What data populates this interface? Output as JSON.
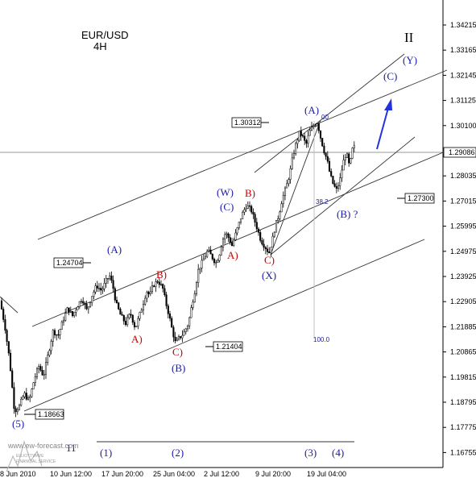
{
  "chart_data": {
    "type": "candlestick",
    "title": "EUR/USD",
    "subtitle": "4H",
    "y_ticks": [
      "1.34215",
      "1.33165",
      "1.32145",
      "1.31125",
      "1.30100",
      "1.29086",
      "1.28035",
      "1.27015",
      "1.25995",
      "1.24975",
      "1.23925",
      "1.22905",
      "1.21885",
      "1.20865",
      "1.19815",
      "1.18795",
      "1.17775",
      "1.16755"
    ],
    "last_price": "1.29086",
    "x_ticks": [
      "8 Jun 2010",
      "10 Jun 12:00",
      "17 Jun 20:00",
      "25 Jun 04:00",
      "2 Jul 12:00",
      "9 Jul 20:00",
      "19 Jul 04:00"
    ],
    "wave_degree_label": "II",
    "waves_blue": [
      "(5)",
      "(A)",
      "(B)",
      "(W)",
      "(C)",
      "(X)",
      "(A)",
      "(B) ?",
      "(C)",
      "(Y)"
    ],
    "waves_red": [
      "A)",
      "B)",
      "C)",
      "A)",
      "B)",
      "C)"
    ],
    "bottom_counts": [
      "(1)",
      "(2)",
      "(3)",
      "(4)"
    ],
    "bottom_prefix": "11",
    "levels": [
      "1.18663",
      "1.24704",
      "1.21404",
      "1.30312",
      "1.27300"
    ],
    "fib_labels": [
      "00",
      "38.2",
      "100.0"
    ],
    "watermark": "www.ew-forecast.com",
    "watermark_sub": [
      "ELLIOTTWAVE",
      "FINANCIAL SERVICE"
    ],
    "colors": {
      "wave_blue": "#1a1aa8",
      "wave_red": "#cc0000",
      "forecast_arrow": "#2233dd",
      "candles": "#000000"
    },
    "price_path": [
      [
        0,
        1.232
      ],
      [
        6,
        1.222
      ],
      [
        12,
        1.208
      ],
      [
        18,
        1.188
      ],
      [
        24,
        1.19
      ],
      [
        30,
        1.195
      ],
      [
        36,
        1.192
      ],
      [
        42,
        1.2
      ],
      [
        48,
        1.206
      ],
      [
        54,
        1.202
      ],
      [
        60,
        1.211
      ],
      [
        66,
        1.22
      ],
      [
        72,
        1.218
      ],
      [
        78,
        1.224
      ],
      [
        84,
        1.229
      ],
      [
        90,
        1.226
      ],
      [
        96,
        1.23
      ],
      [
        102,
        1.233
      ],
      [
        108,
        1.228
      ],
      [
        114,
        1.234
      ],
      [
        120,
        1.238
      ],
      [
        126,
        1.236
      ],
      [
        132,
        1.24
      ],
      [
        136,
        1.242
      ],
      [
        140,
        1.238
      ],
      [
        144,
        1.231
      ],
      [
        150,
        1.226
      ],
      [
        156,
        1.223
      ],
      [
        162,
        1.227
      ],
      [
        168,
        1.221
      ],
      [
        172,
        1.225
      ],
      [
        176,
        1.229
      ],
      [
        182,
        1.236
      ],
      [
        186,
        1.234
      ],
      [
        190,
        1.238
      ],
      [
        196,
        1.24
      ],
      [
        202,
        1.237
      ],
      [
        206,
        1.231
      ],
      [
        210,
        1.226
      ],
      [
        214,
        1.22
      ],
      [
        218,
        1.215
      ],
      [
        222,
        1.217
      ],
      [
        228,
        1.219
      ],
      [
        234,
        1.223
      ],
      [
        238,
        1.23
      ],
      [
        242,
        1.236
      ],
      [
        246,
        1.244
      ],
      [
        252,
        1.248
      ],
      [
        258,
        1.252
      ],
      [
        264,
        1.249
      ],
      [
        268,
        1.247
      ],
      [
        272,
        1.25
      ],
      [
        276,
        1.256
      ],
      [
        280,
        1.259
      ],
      [
        284,
        1.257
      ],
      [
        288,
        1.254
      ],
      [
        292,
        1.258
      ],
      [
        296,
        1.262
      ],
      [
        300,
        1.266
      ],
      [
        306,
        1.27
      ],
      [
        312,
        1.268
      ],
      [
        316,
        1.264
      ],
      [
        320,
        1.26
      ],
      [
        324,
        1.256
      ],
      [
        328,
        1.254
      ],
      [
        334,
        1.251
      ],
      [
        338,
        1.256
      ],
      [
        342,
        1.262
      ],
      [
        346,
        1.266
      ],
      [
        350,
        1.272
      ],
      [
        356,
        1.278
      ],
      [
        360,
        1.283
      ],
      [
        364,
        1.29
      ],
      [
        368,
        1.295
      ],
      [
        372,
        1.299
      ],
      [
        376,
        1.297
      ],
      [
        380,
        1.294
      ],
      [
        384,
        1.299
      ],
      [
        390,
        1.302
      ],
      [
        394,
        1.303
      ],
      [
        398,
        1.297
      ],
      [
        402,
        1.292
      ],
      [
        406,
        1.288
      ],
      [
        410,
        1.282
      ],
      [
        414,
        1.278
      ],
      [
        418,
        1.276
      ],
      [
        422,
        1.28
      ],
      [
        426,
        1.287
      ],
      [
        430,
        1.291
      ],
      [
        434,
        1.285
      ],
      [
        438,
        1.293
      ]
    ]
  }
}
